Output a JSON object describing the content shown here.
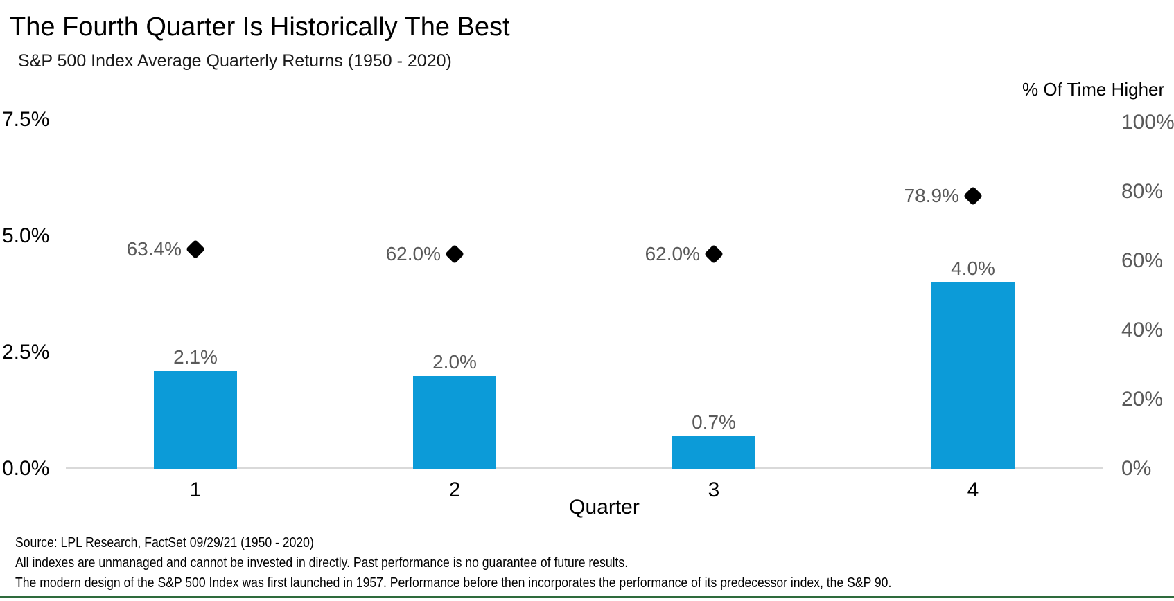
{
  "header": {
    "title": "The Fourth Quarter Is Historically The Best",
    "subtitle": "S&P 500 Index Average Quarterly Returns (1950 - 2020)"
  },
  "chart_data": {
    "type": "bar",
    "categories": [
      "1",
      "2",
      "3",
      "4"
    ],
    "xlabel": "Quarter",
    "series": [
      {
        "name": "Average Quarterly Return",
        "type": "bar",
        "axis": "left",
        "values": [
          2.1,
          2.0,
          0.7,
          4.0
        ],
        "labels": [
          "2.1%",
          "2.0%",
          "0.7%",
          "4.0%"
        ]
      },
      {
        "name": "% Of Time Higher",
        "type": "scatter-diamond",
        "axis": "right",
        "values": [
          63.4,
          62.0,
          62.0,
          78.9
        ],
        "labels": [
          "63.4%",
          "62.0%",
          "62.0%",
          "78.9%"
        ]
      }
    ],
    "left_axis": {
      "ticks": [
        "7.5%",
        "5.0%",
        "2.5%",
        "0.0%"
      ],
      "min": 0,
      "max": 7.5
    },
    "right_axis": {
      "title": "% Of Time Higher",
      "ticks": [
        "100%",
        "80%",
        "60%",
        "40%",
        "20%",
        "0%"
      ],
      "min": 0,
      "max": 100
    },
    "grid": false,
    "legend": "none"
  },
  "footer": {
    "lines": [
      "Source: LPL Research, FactSet 09/29/21 (1950 - 2020)",
      "All indexes are unmanaged and cannot be invested in directly. Past performance is no guarantee of future results.",
      "The modern design of the S&P 500 Index was first launched in 1957. Performance before then incorporates the performance of its predecessor index, the S&P 90."
    ]
  },
  "colors": {
    "bar": "#0C9BD8",
    "marker": "#000000",
    "data_label_gray": "#595959",
    "right_tick_gray": "#595959",
    "axis_line": "#D9D9D9",
    "bottom_rule": "#2E6B3C"
  }
}
